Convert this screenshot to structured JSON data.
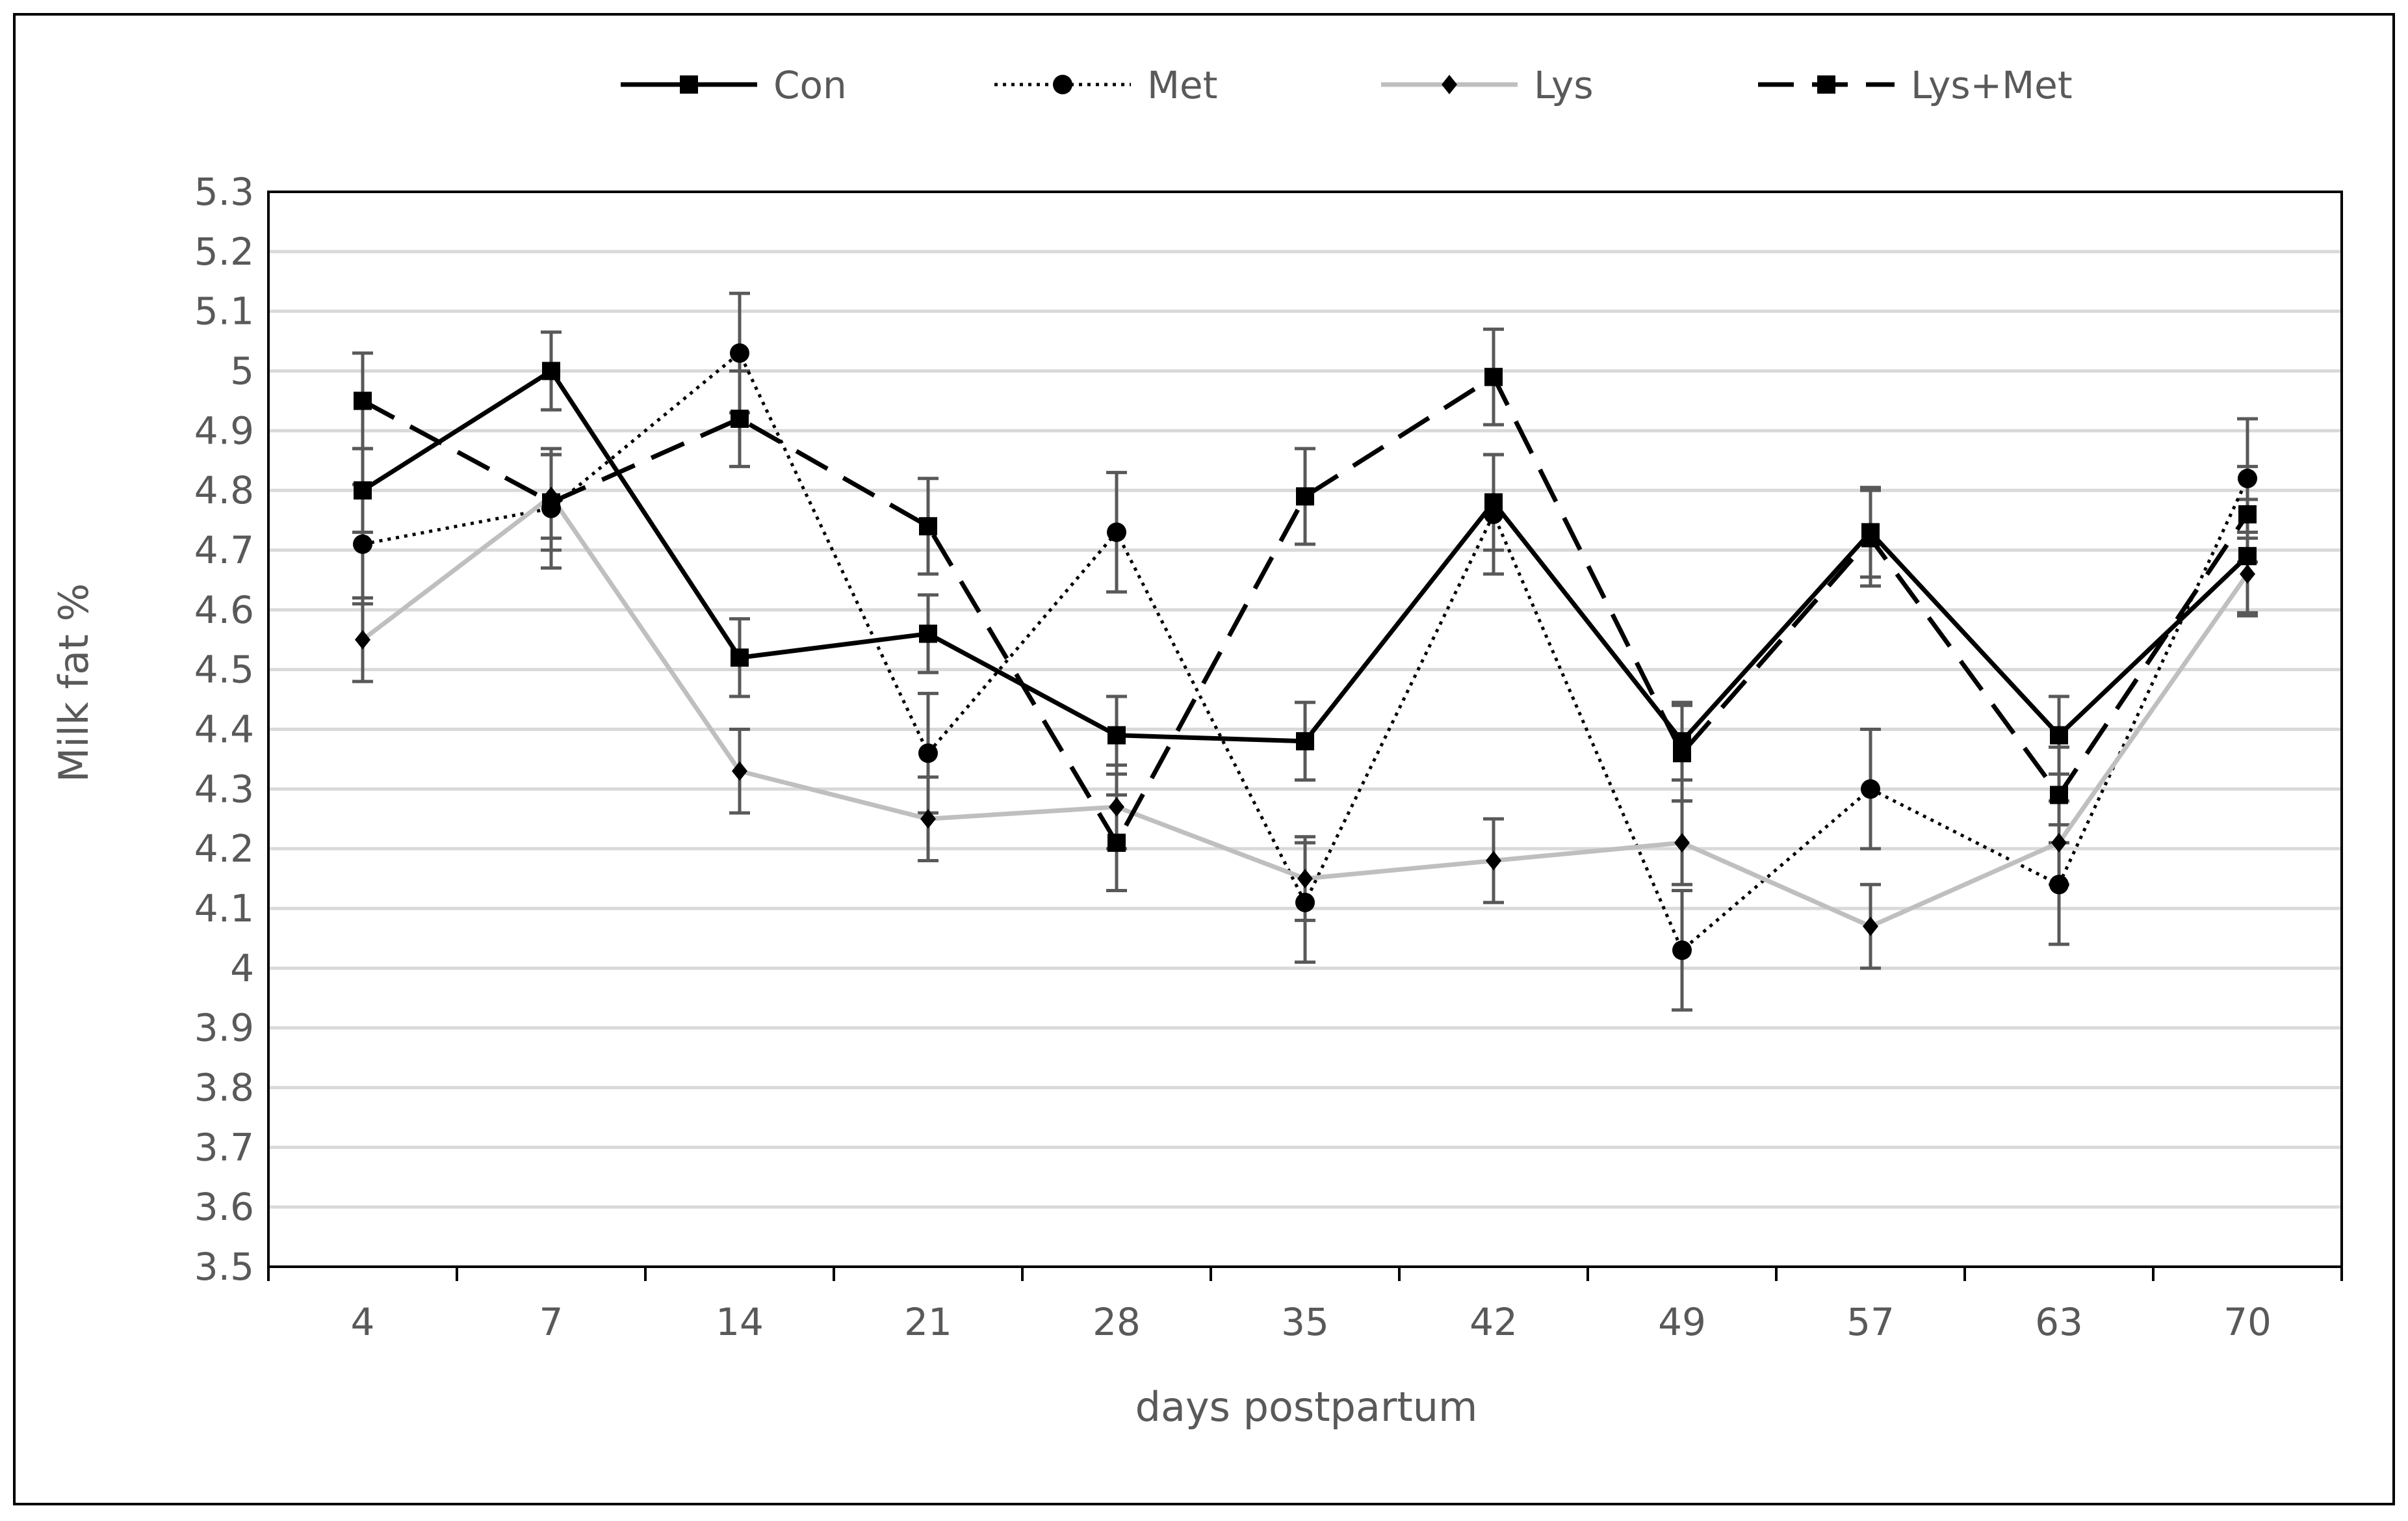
{
  "chart_data": {
    "type": "line",
    "title": "",
    "xlabel": "days postpartum",
    "ylabel": "Milk fat %",
    "categories": [
      "4",
      "7",
      "14",
      "21",
      "28",
      "35",
      "42",
      "49",
      "57",
      "63",
      "70"
    ],
    "ylim": [
      3.5,
      5.3
    ],
    "yticks": [
      3.5,
      3.6,
      3.7,
      3.8,
      3.9,
      4,
      4.1,
      4.2,
      4.3,
      4.4,
      4.5,
      4.6,
      4.7,
      4.8,
      4.9,
      5,
      5.1,
      5.2,
      5.3
    ],
    "grid": true,
    "legend_position": "top",
    "series": [
      {
        "name": "Con",
        "marker": "square",
        "line_style": "solid",
        "color": "#000000",
        "values": [
          4.8,
          5.0,
          4.52,
          4.56,
          4.39,
          4.38,
          4.78,
          4.38,
          4.73,
          4.39,
          4.69
        ],
        "errors": [
          0.07,
          0.065,
          0.065,
          0.065,
          0.065,
          0.065,
          0.08,
          0.065,
          0.075,
          0.065,
          0.095
        ]
      },
      {
        "name": "Met",
        "marker": "circle",
        "line_style": "dotted",
        "color": "#000000",
        "values": [
          4.71,
          4.77,
          5.03,
          4.36,
          4.73,
          4.11,
          4.76,
          4.03,
          4.3,
          4.14,
          4.82
        ],
        "errors": [
          0.1,
          0.1,
          0.1,
          0.1,
          0.1,
          0.1,
          0.1,
          0.1,
          0.1,
          0.1,
          0.1
        ]
      },
      {
        "name": "Lys",
        "marker": "diamond",
        "line_style": "solid",
        "color": "#bfbfbf",
        "values": [
          4.55,
          4.79,
          4.33,
          4.25,
          4.27,
          4.15,
          4.18,
          4.21,
          4.07,
          4.21,
          4.66
        ],
        "errors": [
          0.07,
          0.07,
          0.07,
          0.07,
          0.07,
          0.07,
          0.07,
          0.07,
          0.07,
          0.07,
          0.07
        ]
      },
      {
        "name": "Lys+Met",
        "marker": "square",
        "line_style": "dashed",
        "color": "#000000",
        "values": [
          4.95,
          4.78,
          4.92,
          4.74,
          4.21,
          4.79,
          4.99,
          4.36,
          4.72,
          4.29,
          4.76
        ],
        "errors": [
          0.08,
          0.08,
          0.08,
          0.08,
          0.08,
          0.08,
          0.08,
          0.08,
          0.08,
          0.08,
          0.08
        ]
      }
    ],
    "errorbar_color": "#595959",
    "gridline_color": "#d9d9d9",
    "axis_color": "#000000"
  }
}
